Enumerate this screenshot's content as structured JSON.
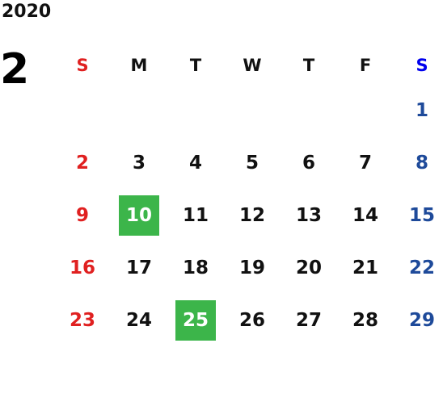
{
  "year": "2020",
  "month": "2",
  "weekdays": [
    "S",
    "M",
    "T",
    "W",
    "T",
    "F",
    "S"
  ],
  "weeks": [
    [
      "",
      "",
      "",
      "",
      "",
      "",
      "1"
    ],
    [
      "2",
      "3",
      "4",
      "5",
      "6",
      "7",
      "8"
    ],
    [
      "9",
      "10",
      "11",
      "12",
      "13",
      "14",
      "15"
    ],
    [
      "16",
      "17",
      "18",
      "19",
      "20",
      "21",
      "22"
    ],
    [
      "23",
      "24",
      "25",
      "26",
      "27",
      "28",
      "29"
    ]
  ],
  "highlighted_days": [
    "10",
    "25"
  ],
  "colors": {
    "sunday": "#e02020",
    "saturday": "#1e4a9a",
    "saturday_header": "#0000ee",
    "weekday": "#111111",
    "highlight_bg": "#3cb54a",
    "highlight_text": "#ffffff"
  }
}
